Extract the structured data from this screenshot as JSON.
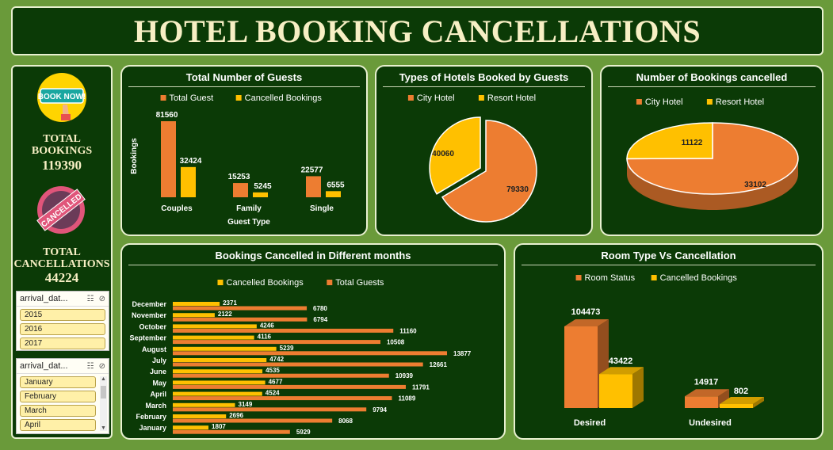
{
  "title": "HOTEL BOOKING CANCELLATIONS",
  "kpi": {
    "bookings_label_1": "TOTAL",
    "bookings_label_2": "BOOKINGS",
    "bookings_value": "119390",
    "cancel_label_1": "TOTAL",
    "cancel_label_2": "CANCELLATIONS",
    "cancel_value": "44224",
    "book_badge_text": "BOOK NOW!",
    "cancel_stamp_text": "CANCELLED"
  },
  "slicers": [
    {
      "header": "arrival_dat...",
      "items": [
        "2015",
        "2016",
        "2017"
      ]
    },
    {
      "header": "arrival_dat...",
      "items": [
        "January",
        "February",
        "March",
        "April"
      ]
    }
  ],
  "colors": {
    "orange": "#ed7d31",
    "gold": "#ffc000",
    "panel": "#0b3a06",
    "background": "#6a9a3a"
  },
  "chart_data": [
    {
      "type": "bar",
      "title": "Total Number of Guests",
      "xlabel": "Guest Type",
      "ylabel": "Bookings",
      "categories": [
        "Couples",
        "Family",
        "Single"
      ],
      "series": [
        {
          "name": "Total Guest",
          "values": [
            81560,
            15253,
            22577
          ]
        },
        {
          "name": "Cancelled Bookings",
          "values": [
            32424,
            5245,
            6555
          ]
        }
      ],
      "legend": "top"
    },
    {
      "type": "pie",
      "title": "Types of Hotels Booked by Guests",
      "labels": [
        "City Hotel",
        "Resort Hotel"
      ],
      "values": [
        79330,
        40060
      ],
      "legend": "top"
    },
    {
      "type": "pie",
      "title": "Number of Bookings cancelled",
      "labels": [
        "City Hotel",
        "Resort Hotel"
      ],
      "values": [
        33102,
        11122
      ],
      "legend": "top"
    },
    {
      "type": "bar",
      "orientation": "horizontal",
      "title": "Bookings Cancelled in Different months",
      "categories": [
        "December",
        "November",
        "October",
        "September",
        "August",
        "July",
        "June",
        "May",
        "April",
        "March",
        "February",
        "January"
      ],
      "series": [
        {
          "name": "Cancelled Bookings",
          "values": [
            2371,
            2122,
            4246,
            4116,
            5239,
            4742,
            4535,
            4677,
            4524,
            3149,
            2696,
            1807
          ]
        },
        {
          "name": "Total Guests",
          "values": [
            6780,
            6794,
            11160,
            10508,
            13877,
            12661,
            10939,
            11791,
            11089,
            9794,
            8068,
            5929
          ]
        }
      ],
      "legend": "top"
    },
    {
      "type": "bar",
      "title": "Room Type Vs Cancellation",
      "categories": [
        "Desired",
        "Undesired"
      ],
      "series": [
        {
          "name": "Room Status",
          "values": [
            104473,
            14917
          ]
        },
        {
          "name": "Cancelled Bookings",
          "values": [
            43422,
            802
          ]
        }
      ],
      "legend": "top"
    }
  ]
}
